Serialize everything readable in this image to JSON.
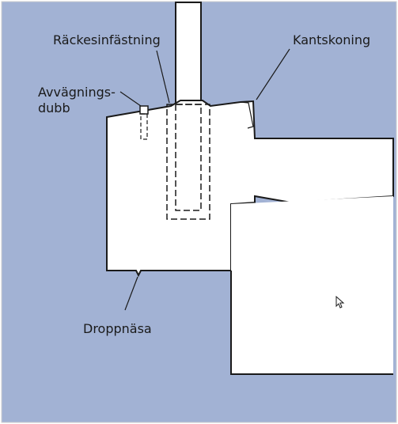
{
  "diagram": {
    "labels": {
      "railing_fastening": "Räckesinfästning",
      "edge_protection": "Kantskoning",
      "leveling_dowel_line1": "Avvägnings-",
      "leveling_dowel_line2": "dubb",
      "drip_nose": "Droppnäsa"
    },
    "colors": {
      "background": "#a2b2d4",
      "structure": "#ffffff",
      "outline": "#1a1a1a"
    }
  }
}
